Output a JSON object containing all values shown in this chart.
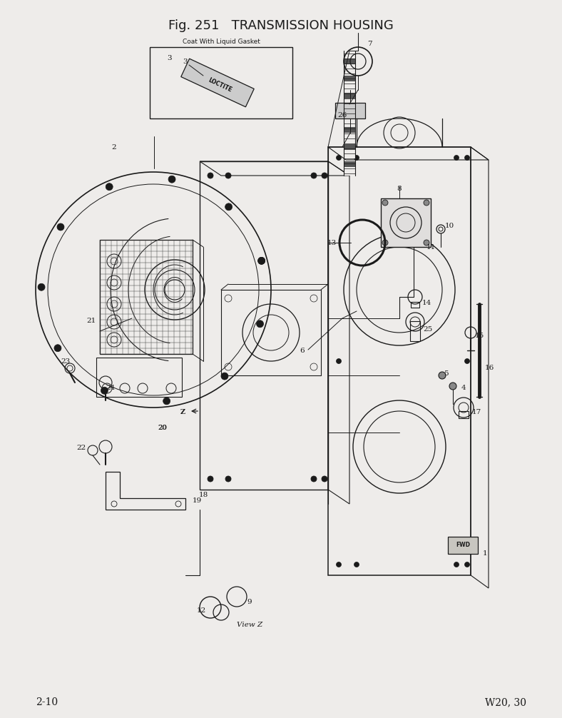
{
  "title": "Fig. 251   TRANSMISSION HOUSING",
  "footer_left": "2-10",
  "footer_right": "W20, 30",
  "bg_color": "#eeecea",
  "line_color": "#1a1a1a",
  "title_fontsize": 13,
  "footer_fontsize": 10,
  "fig_width": 7.88,
  "fig_height": 10.06,
  "view_label": "View Z"
}
